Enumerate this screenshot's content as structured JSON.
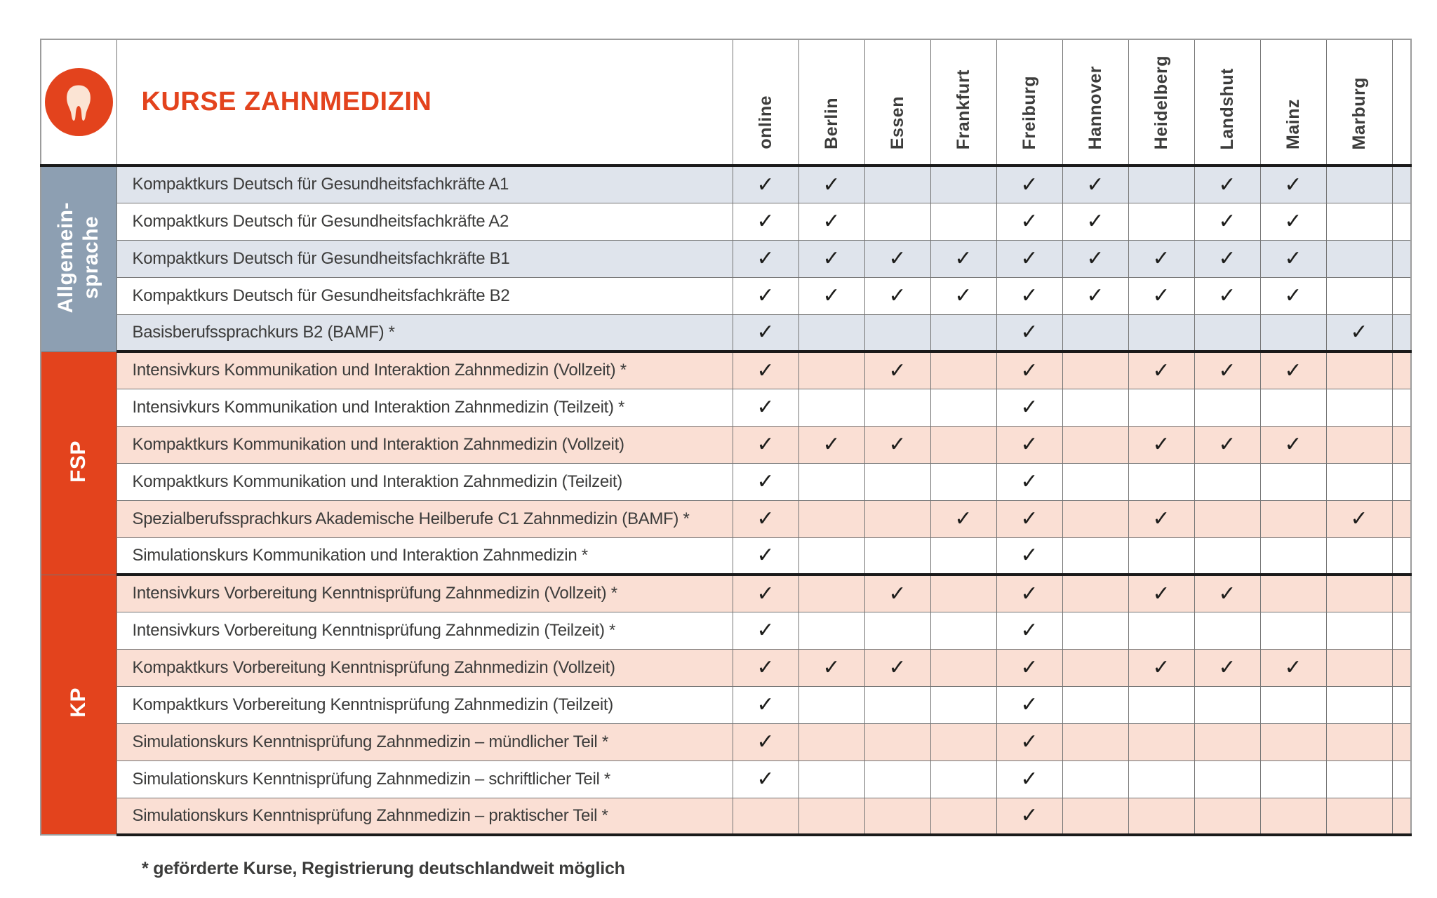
{
  "page": {
    "title": "KURSE ZAHNMEDIZIN",
    "footnote": "* geförderte Kurse, Registrierung deutschlandweit möglich"
  },
  "table": {
    "city_columns": [
      "online",
      "Berlin",
      "Essen",
      "Frankfurt",
      "Freiburg",
      "Hannover",
      "Heidelberg",
      "Landshut",
      "Mainz",
      "Marburg"
    ],
    "check_symbol": "✓",
    "sections": [
      {
        "id": "allgemeinsprache",
        "label": "Allgemein-\nsprache",
        "theme": "blue",
        "rows": [
          {
            "label": "Kompaktkurs Deutsch für Gesundheitsfachkräfte A1",
            "checks": [
              1,
              1,
              0,
              0,
              1,
              1,
              0,
              1,
              1,
              0
            ]
          },
          {
            "label": "Kompaktkurs Deutsch für Gesundheitsfachkräfte A2",
            "checks": [
              1,
              1,
              0,
              0,
              1,
              1,
              0,
              1,
              1,
              0
            ]
          },
          {
            "label": "Kompaktkurs Deutsch für Gesundheitsfachkräfte B1",
            "checks": [
              1,
              1,
              1,
              1,
              1,
              1,
              1,
              1,
              1,
              0
            ]
          },
          {
            "label": "Kompaktkurs Deutsch für Gesundheitsfachkräfte B2",
            "checks": [
              1,
              1,
              1,
              1,
              1,
              1,
              1,
              1,
              1,
              0
            ]
          },
          {
            "label": "Basisberufssprachkurs B2 (BAMF) *",
            "checks": [
              1,
              0,
              0,
              0,
              1,
              0,
              0,
              0,
              0,
              1
            ]
          }
        ]
      },
      {
        "id": "fsp",
        "label": "FSP",
        "theme": "orange",
        "rows": [
          {
            "label": "Intensivkurs Kommunikation und Interaktion Zahnmedizin (Vollzeit) *",
            "checks": [
              1,
              0,
              1,
              0,
              1,
              0,
              1,
              1,
              1,
              0
            ]
          },
          {
            "label": "Intensivkurs Kommunikation und Interaktion Zahnmedizin (Teilzeit) *",
            "checks": [
              1,
              0,
              0,
              0,
              1,
              0,
              0,
              0,
              0,
              0
            ]
          },
          {
            "label": "Kompaktkurs Kommunikation und Interaktion Zahnmedizin (Vollzeit)",
            "checks": [
              1,
              1,
              1,
              0,
              1,
              0,
              1,
              1,
              1,
              0
            ]
          },
          {
            "label": "Kompaktkurs Kommunikation und Interaktion Zahnmedizin (Teilzeit)",
            "checks": [
              1,
              0,
              0,
              0,
              1,
              0,
              0,
              0,
              0,
              0
            ]
          },
          {
            "label": "Spezialberufssprachkurs Akademische Heilberufe C1 Zahnmedizin (BAMF) *",
            "checks": [
              1,
              0,
              0,
              1,
              1,
              0,
              1,
              0,
              0,
              1
            ]
          },
          {
            "label": "Simulationskurs Kommunikation und Interaktion Zahnmedizin *",
            "checks": [
              1,
              0,
              0,
              0,
              1,
              0,
              0,
              0,
              0,
              0
            ]
          }
        ]
      },
      {
        "id": "kp",
        "label": "KP",
        "theme": "orange",
        "rows": [
          {
            "label": "Intensivkurs Vorbereitung Kenntnisprüfung Zahnmedizin (Vollzeit) *",
            "checks": [
              1,
              0,
              1,
              0,
              1,
              0,
              1,
              1,
              0,
              0
            ]
          },
          {
            "label": "Intensivkurs Vorbereitung Kenntnisprüfung Zahnmedizin (Teilzeit) *",
            "checks": [
              1,
              0,
              0,
              0,
              1,
              0,
              0,
              0,
              0,
              0
            ]
          },
          {
            "label": "Kompaktkurs Vorbereitung Kenntnisprüfung Zahnmedizin (Vollzeit)",
            "checks": [
              1,
              1,
              1,
              0,
              1,
              0,
              1,
              1,
              1,
              0
            ]
          },
          {
            "label": "Kompaktkurs Vorbereitung Kenntnisprüfung Zahnmedizin (Teilzeit)",
            "checks": [
              1,
              0,
              0,
              0,
              1,
              0,
              0,
              0,
              0,
              0
            ]
          },
          {
            "label": "Simulationskurs Kenntnisprüfung Zahnmedizin – mündlicher Teil *",
            "checks": [
              1,
              0,
              0,
              0,
              1,
              0,
              0,
              0,
              0,
              0
            ]
          },
          {
            "label": "Simulationskurs Kenntnisprüfung Zahnmedizin – schriftlicher Teil *",
            "checks": [
              1,
              0,
              0,
              0,
              1,
              0,
              0,
              0,
              0,
              0
            ]
          },
          {
            "label": "Simulationskurs Kenntnisprüfung Zahnmedizin – praktischer Teil *",
            "checks": [
              0,
              0,
              0,
              0,
              1,
              0,
              0,
              0,
              0,
              0
            ]
          }
        ]
      }
    ]
  },
  "colors": {
    "accent_orange": "#e3431d",
    "sidebar_blue": "#8d9fb2",
    "row_tint_blue": "#dfe4ec",
    "row_tint_pink": "#fadfd4",
    "check_color": "#1d1d1b",
    "text_color": "#3c3c3b",
    "grid_line": "#757575",
    "section_line": "#1a1a1a"
  },
  "icons": {
    "logo": "tooth-icon"
  }
}
